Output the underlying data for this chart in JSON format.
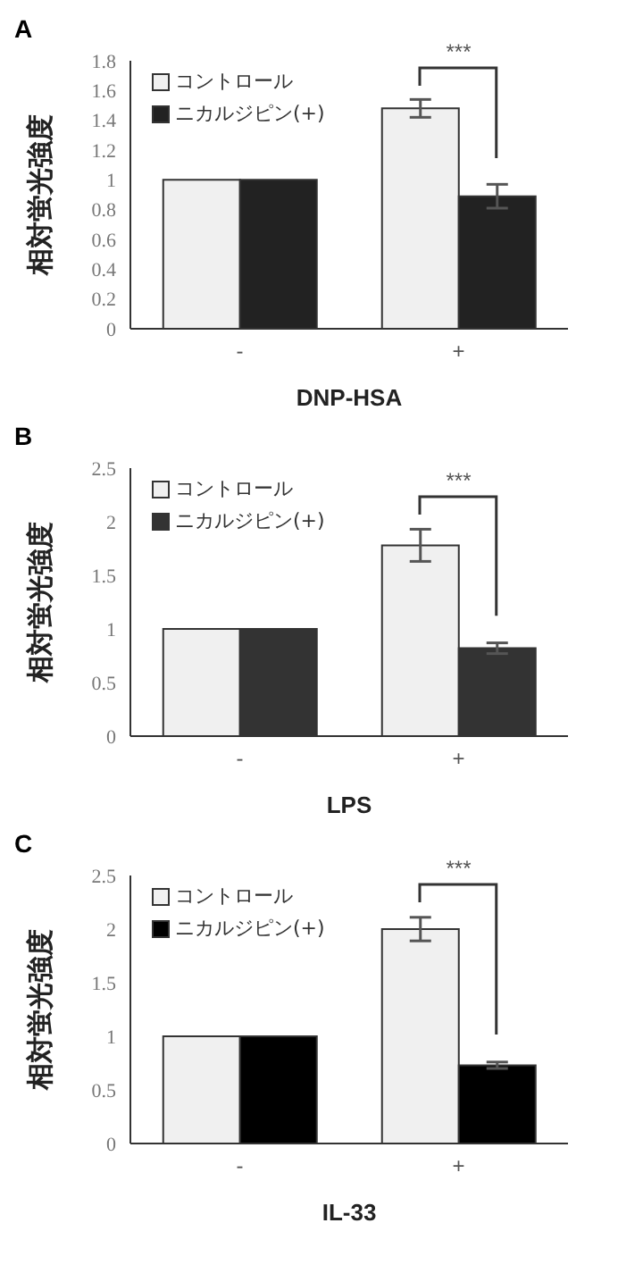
{
  "chart_data": [
    {
      "type": "bar",
      "title": "A",
      "xlabel": "DNP-HSA",
      "ylabel": "相対蛍光強度",
      "categories": [
        "-",
        "+"
      ],
      "ylim": [
        0,
        1.8
      ],
      "yticks": [
        0,
        0.2,
        0.4,
        0.6,
        0.8,
        1,
        1.2,
        1.4,
        1.6,
        1.8
      ],
      "legend": "top left",
      "grid": false,
      "series": [
        {
          "name": "コントロール",
          "color": "#f0f0f0",
          "values": [
            1,
            1.48
          ],
          "errors": [
            null,
            0.06
          ]
        },
        {
          "name": "ニカルジピン(+)",
          "color": "#222222",
          "values": [
            1,
            0.89
          ],
          "errors": [
            null,
            0.08
          ]
        }
      ],
      "annotations": [
        "***"
      ]
    },
    {
      "type": "bar",
      "title": "B",
      "xlabel": "LPS",
      "ylabel": "相対蛍光強度",
      "categories": [
        "-",
        "+"
      ],
      "ylim": [
        0,
        2.5
      ],
      "yticks": [
        0,
        0.5,
        1,
        1.5,
        2,
        2.5
      ],
      "legend": "top left",
      "grid": false,
      "series": [
        {
          "name": "コントロール",
          "color": "#f0f0f0",
          "values": [
            1,
            1.78
          ],
          "errors": [
            null,
            0.15
          ]
        },
        {
          "name": "ニカルジピン(+)",
          "color": "#333333",
          "values": [
            1,
            0.82
          ],
          "errors": [
            null,
            0.05
          ]
        }
      ],
      "annotations": [
        "***"
      ]
    },
    {
      "type": "bar",
      "title": "C",
      "xlabel": "IL-33",
      "ylabel": "相対蛍光強度",
      "categories": [
        "-",
        "+"
      ],
      "ylim": [
        0,
        2.5
      ],
      "yticks": [
        0,
        0.5,
        1,
        1.5,
        2,
        2.5
      ],
      "legend": "top left",
      "grid": false,
      "series": [
        {
          "name": "コントロール",
          "color": "#f0f0f0",
          "values": [
            1,
            2.0
          ],
          "errors": [
            null,
            0.11
          ]
        },
        {
          "name": "ニカルジピン(+)",
          "color": "#000000",
          "values": [
            1,
            0.73
          ],
          "errors": [
            null,
            0.03
          ]
        }
      ],
      "annotations": [
        "***"
      ]
    }
  ]
}
